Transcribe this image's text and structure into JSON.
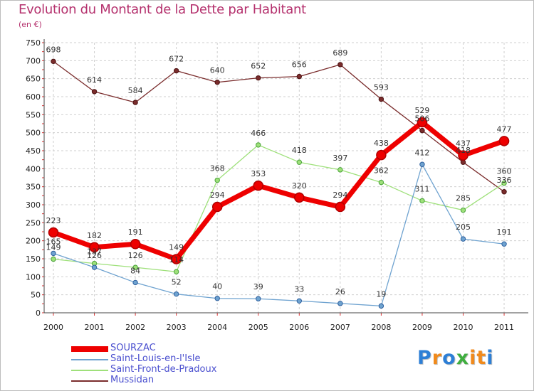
{
  "header": {
    "title": "Evolution du Montant de la Dette par Habitant",
    "unit": "(en €)"
  },
  "chart_data": {
    "type": "line",
    "title": "Evolution du Montant de la Dette par Habitant",
    "subtitle": "(en €)",
    "xlabel": "",
    "ylabel": "",
    "x": [
      "2000",
      "2001",
      "2002",
      "2003",
      "2004",
      "2005",
      "2006",
      "2007",
      "2008",
      "2009",
      "2010",
      "2011"
    ],
    "ylim": [
      0,
      750
    ],
    "yticks": [
      0,
      50,
      100,
      150,
      200,
      250,
      300,
      350,
      400,
      450,
      500,
      550,
      600,
      650,
      700,
      750
    ],
    "grid": true,
    "legend": "bottom-left",
    "series": [
      {
        "name": "SOURZAC",
        "color": "#ee0000",
        "values": [
          223,
          182,
          191,
          149,
          294,
          353,
          320,
          294,
          438,
          529,
          437,
          477
        ],
        "labels": [
          "223",
          "182",
          "191",
          "149",
          "294",
          "353",
          "320",
          "294",
          "438",
          "529",
          "437",
          "477"
        ]
      },
      {
        "name": "Saint-Louis-en-l'Isle",
        "color": "#6fa3d0",
        "values": [
          165,
          126,
          84,
          52,
          40,
          39,
          33,
          26,
          19,
          412,
          205,
          191
        ],
        "labels": [
          "165",
          "126",
          "84",
          "52",
          "40",
          "39",
          "33",
          "26",
          "19",
          "412",
          "205",
          "191"
        ]
      },
      {
        "name": "Saint-Front-de-Pradoux",
        "color": "#9ee07a",
        "values": [
          149,
          137,
          126,
          114,
          368,
          466,
          418,
          397,
          362,
          311,
          285,
          360
        ],
        "labels": [
          "149",
          "137",
          "126",
          "114",
          "368",
          "466",
          "418",
          "397",
          "362",
          "311",
          "285",
          "360"
        ]
      },
      {
        "name": "Mussidan",
        "color": "#7a2c2c",
        "values": [
          698,
          614,
          584,
          672,
          640,
          652,
          656,
          689,
          593,
          506,
          418,
          336
        ],
        "labels": [
          "698",
          "614",
          "584",
          "672",
          "640",
          "652",
          "656",
          "689",
          "593",
          "506",
          "418",
          "336"
        ]
      }
    ]
  },
  "logo": {
    "letters": [
      "P",
      "r",
      "o",
      "x",
      "i",
      "t",
      "i"
    ],
    "colors": [
      "#2d7fd6",
      "#f08a1c",
      "#2d7fd6",
      "#3fae3f",
      "#f08a1c",
      "#f08a1c",
      "#2d7fd6"
    ]
  }
}
